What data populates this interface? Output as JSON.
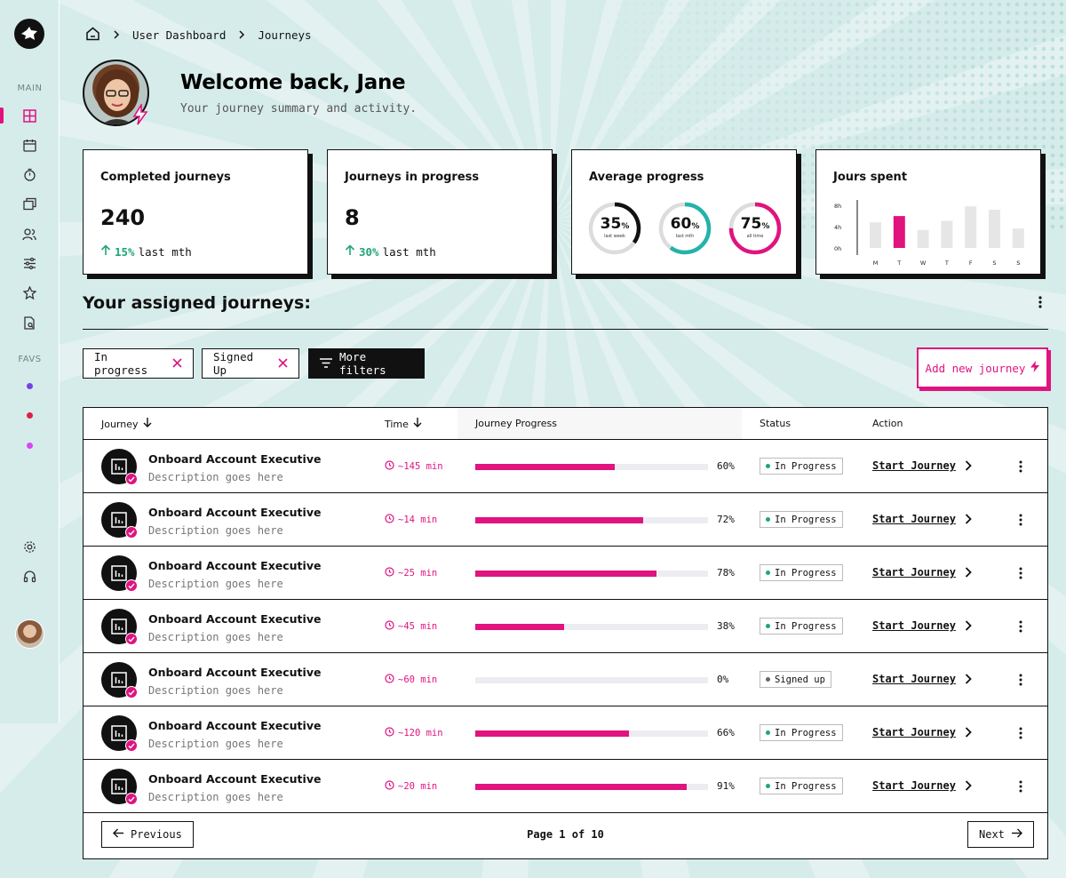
{
  "breadcrumb": {
    "items": [
      "User Dashboard",
      "Journeys"
    ]
  },
  "header": {
    "welcome": "Welcome back, Jane",
    "subtitle": "Your journey summary and activity."
  },
  "sidebar": {
    "section_main": "MAIN",
    "section_favs": "FAVS",
    "fav_colors": [
      "#7b3fe4",
      "#e11d48",
      "#d946ef"
    ]
  },
  "cards": {
    "completed": {
      "title": "Completed journeys",
      "value": "240",
      "trend_pct": "15%",
      "trend_label": "last mth"
    },
    "in_progress": {
      "title": "Journeys in progress",
      "value": "8",
      "trend_pct": "30%",
      "trend_label": "last mth"
    },
    "average": {
      "title": "Average progress",
      "rings": [
        {
          "value": "35",
          "unit": "%",
          "label": "last week",
          "fraction": 0.35,
          "color": "#111111"
        },
        {
          "value": "60",
          "unit": "%",
          "label": "last mth",
          "fraction": 0.6,
          "color": "#22b3aa"
        },
        {
          "value": "75",
          "unit": "%",
          "label": "all time",
          "fraction": 0.75,
          "color": "#e0137f"
        }
      ]
    },
    "hours": {
      "title": "Jours spent",
      "y_labels": [
        "8h",
        "4h",
        "0h"
      ],
      "days": [
        "M",
        "T",
        "W",
        "T",
        "F",
        "S",
        "S"
      ],
      "hours": [
        3.7,
        4.6,
        2.6,
        3.9,
        6.0,
        5.5,
        2.8
      ],
      "highlight_index": 1,
      "ylim": [
        0,
        8
      ]
    }
  },
  "section": {
    "title": "Your assigned journeys:"
  },
  "filters": {
    "chips": [
      "In progress",
      "Signed Up"
    ],
    "more_label": "More filters",
    "add_label": "Add new journey"
  },
  "table": {
    "columns": {
      "journey": "Journey",
      "time": "Time",
      "progress": "Journey Progress",
      "status": "Status",
      "action": "Action"
    },
    "rows": [
      {
        "title": "Onboard Account Executive",
        "desc": "Description goes here",
        "time": "~145 min",
        "progress": 60,
        "pct": "60%",
        "status": "In Progress",
        "action": "Start Journey"
      },
      {
        "title": "Onboard Account Executive",
        "desc": "Description goes here",
        "time": "~14 min",
        "progress": 72,
        "pct": "72%",
        "status": "In Progress",
        "action": "Start Journey"
      },
      {
        "title": "Onboard Account Executive",
        "desc": "Description goes here",
        "time": "~25 min",
        "progress": 78,
        "pct": "78%",
        "status": "In Progress",
        "action": "Start Journey"
      },
      {
        "title": "Onboard Account Executive",
        "desc": "Description goes here",
        "time": "~45 min",
        "progress": 38,
        "pct": "38%",
        "status": "In Progress",
        "action": "Start Journey"
      },
      {
        "title": "Onboard Account Executive",
        "desc": "Description goes here",
        "time": "~60 min",
        "progress": 0,
        "pct": "0%",
        "status": "Signed up",
        "action": "Start Journey"
      },
      {
        "title": "Onboard Account Executive",
        "desc": "Description goes here",
        "time": "~120 min",
        "progress": 66,
        "pct": "66%",
        "status": "In Progress",
        "action": "Start Journey"
      },
      {
        "title": "Onboard Account Executive",
        "desc": "Description goes here",
        "time": "~20 min",
        "progress": 91,
        "pct": "91%",
        "status": "In Progress",
        "action": "Start Journey"
      }
    ]
  },
  "pagination": {
    "previous": "Previous",
    "next": "Next",
    "info": "Page 1 of 10"
  },
  "colors": {
    "accent": "#e0137f",
    "trend": "#1fa47a",
    "status_progress": "#1fa47a",
    "status_signed": "#666666"
  }
}
